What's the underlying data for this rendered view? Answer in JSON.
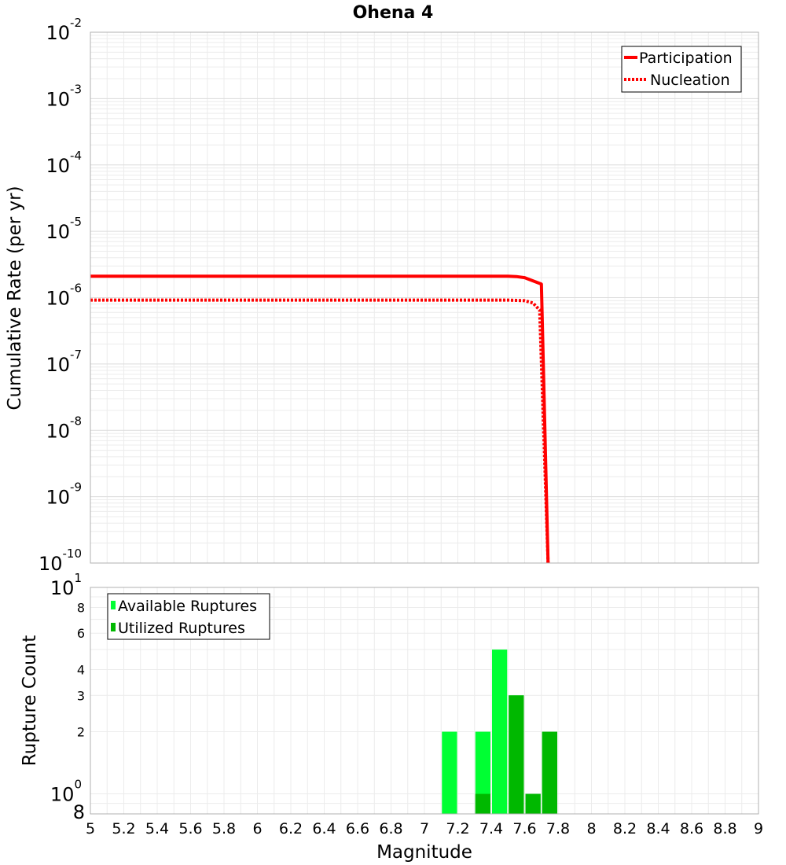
{
  "chart_data": [
    {
      "type": "line",
      "title": "Ohena 4",
      "xlabel": "Magnitude",
      "ylabel": "Cumulative Rate (per yr)",
      "y_scale": "log",
      "xlim": [
        5,
        9
      ],
      "ylim": [
        1e-10,
        0.01
      ],
      "y_ticks": [
        {
          "base": "10",
          "exp": "-10"
        },
        {
          "base": "10",
          "exp": "-9"
        },
        {
          "base": "10",
          "exp": "-8"
        },
        {
          "base": "10",
          "exp": "-7"
        },
        {
          "base": "10",
          "exp": "-6"
        },
        {
          "base": "10",
          "exp": "-5"
        },
        {
          "base": "10",
          "exp": "-4"
        },
        {
          "base": "10",
          "exp": "-3"
        },
        {
          "base": "10",
          "exp": "-2"
        }
      ],
      "legend_position": "top-right",
      "series": [
        {
          "name": "Participation",
          "style": "solid",
          "color": "#ff0000",
          "x": [
            5.0,
            5.5,
            6.0,
            6.5,
            7.0,
            7.5,
            7.55,
            7.6,
            7.7,
            7.74
          ],
          "y": [
            2.1e-06,
            2.1e-06,
            2.1e-06,
            2.1e-06,
            2.1e-06,
            2.1e-06,
            2.08e-06,
            2e-06,
            1.6e-06,
            1e-10
          ]
        },
        {
          "name": "Nucleation",
          "style": "dotted",
          "color": "#ff0000",
          "x": [
            5.0,
            5.5,
            6.0,
            6.5,
            7.0,
            7.5,
            7.55,
            7.6,
            7.65,
            7.69,
            7.74
          ],
          "y": [
            9.2e-07,
            9.2e-07,
            9.2e-07,
            9.2e-07,
            9.2e-07,
            9.2e-07,
            9.1e-07,
            9e-07,
            8.3e-07,
            6.5e-07,
            1e-10
          ]
        }
      ]
    },
    {
      "type": "bar",
      "xlabel": "Magnitude",
      "ylabel": "Rupture Count",
      "y_scale": "log",
      "xlim": [
        5,
        9
      ],
      "ylim": [
        0.8,
        10
      ],
      "x_ticks": [
        "5",
        "5.2",
        "5.4",
        "5.6",
        "5.8",
        "6",
        "6.2",
        "6.4",
        "6.6",
        "6.8",
        "7",
        "7.2",
        "7.4",
        "7.6",
        "7.8",
        "8",
        "8.2",
        "8.4",
        "8.6",
        "8.8",
        "9"
      ],
      "y_ticks": [
        {
          "value": 0.8,
          "label": "8",
          "exp": "",
          "kind": "minor"
        },
        {
          "value": 1,
          "label": "10",
          "exp": "0",
          "kind": "major"
        },
        {
          "value": 2,
          "label": "2",
          "exp": "",
          "kind": "minor"
        },
        {
          "value": 3,
          "label": "3",
          "exp": "",
          "kind": "minor"
        },
        {
          "value": 4,
          "label": "4",
          "exp": "",
          "kind": "minor"
        },
        {
          "value": 6,
          "label": "6",
          "exp": "",
          "kind": "minor"
        },
        {
          "value": 8,
          "label": "8",
          "exp": "",
          "kind": "minor"
        },
        {
          "value": 10,
          "label": "10",
          "exp": "1",
          "kind": "major"
        }
      ],
      "bin_width": 0.1,
      "legend_position": "top-left",
      "series": [
        {
          "name": "Available Ruptures",
          "color": "#00ff33",
          "x": [
            7.15,
            7.35,
            7.45,
            7.55,
            7.65,
            7.75
          ],
          "values": [
            2,
            2,
            5,
            3,
            1,
            2
          ]
        },
        {
          "name": "Utilized Ruptures",
          "color": "#00b800",
          "x": [
            7.35,
            7.55,
            7.65,
            7.75
          ],
          "values": [
            1,
            3,
            1,
            2
          ]
        }
      ]
    }
  ]
}
